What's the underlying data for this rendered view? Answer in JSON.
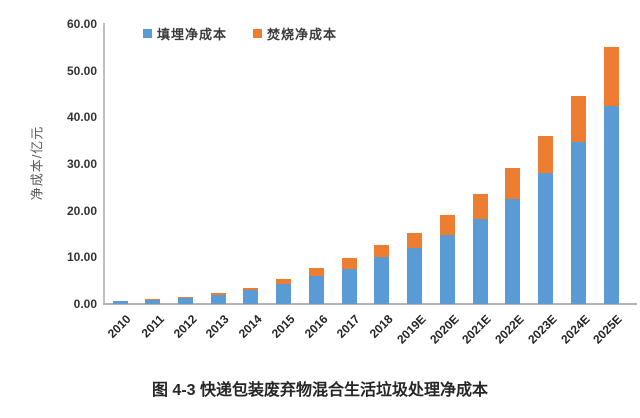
{
  "chart_data": {
    "type": "bar",
    "stacked": true,
    "title": "图 4-3 快递包装废弃物混合生活垃圾处理净成本",
    "ylabel": "净成本/亿元",
    "categories": [
      "2010",
      "2011",
      "2012",
      "2013",
      "2014",
      "2015",
      "2016",
      "2017",
      "2018",
      "2019E",
      "2020E",
      "2021E",
      "2022E",
      "2023E",
      "2024E",
      "2025E"
    ],
    "series": [
      {
        "name": "填埋净成本",
        "color": "#5B9BD5",
        "values": [
          0.6,
          0.9,
          1.3,
          1.9,
          2.9,
          4.2,
          6.0,
          7.6,
          10.0,
          12.0,
          14.8,
          18.2,
          22.6,
          28.0,
          34.7,
          42.5
        ]
      },
      {
        "name": "焚烧净成本",
        "color": "#ED7D31",
        "values": [
          0.1,
          0.15,
          0.25,
          0.5,
          0.6,
          1.1,
          1.7,
          2.3,
          2.7,
          3.3,
          4.2,
          5.3,
          6.5,
          7.9,
          9.8,
          12.5
        ]
      }
    ],
    "ylim": [
      0,
      60
    ],
    "ytick_step": 10,
    "ytick_labels": [
      "0.00",
      "10.00",
      "20.00",
      "30.00",
      "40.00",
      "50.00",
      "60.00"
    ],
    "grid": false,
    "legend_position": "top"
  },
  "colors": {
    "landfill": "#5B9BD5",
    "incineration": "#ED7D31",
    "axis_line": "#BFBFBF",
    "tick_text": "#333333",
    "axis_title_text": "#595959",
    "caption_text": "#262626",
    "background": "#FFFFFF"
  }
}
